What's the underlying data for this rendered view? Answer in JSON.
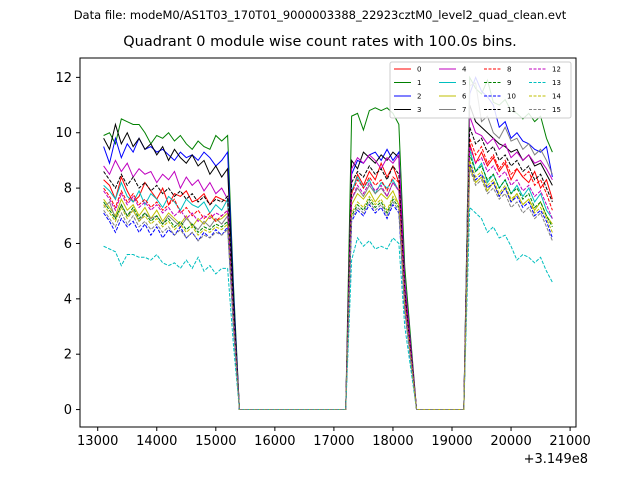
{
  "header": {
    "data_file_line": "Data file: modeM0/AS1T03_170T01_9000003388_22923cztM0_level2_quad_clean.evt"
  },
  "chart_data": {
    "type": "line",
    "title": "Quadrant 0 module wise count rates with 100.0s bins.",
    "xlabel": "",
    "ylabel": "",
    "x_offset_label": "+3.149e8",
    "xlim": [
      12700,
      21100
    ],
    "ylim": [
      -0.63,
      12.7
    ],
    "x_ticks": [
      13000,
      14000,
      15000,
      16000,
      17000,
      18000,
      19000,
      20000,
      21000
    ],
    "x_tick_labels": [
      "13000",
      "14000",
      "15000",
      "16000",
      "17000",
      "18000",
      "19000",
      "20000",
      "21000"
    ],
    "y_ticks": [
      0,
      2,
      4,
      6,
      8,
      10,
      12
    ],
    "y_tick_labels": [
      "0",
      "2",
      "4",
      "6",
      "8",
      "10",
      "12"
    ],
    "grid": false,
    "legend_position": "top-right",
    "legend_columns": 4,
    "series_x_segments": {
      "seg1": [
        13100,
        15200
      ],
      "drop1_end": 15400,
      "gap1_end": 17200,
      "seg2": [
        17300,
        18100
      ],
      "drop2_end": 18400,
      "gap2_end": 19200,
      "seg3": [
        19300,
        20700
      ],
      "bin_width": 100
    },
    "series": [
      {
        "name": "0",
        "color": "#ff0000",
        "dashed": false,
        "values_segments": [
          [
            8.3,
            8.1,
            7.6,
            8.4,
            7.9,
            7.5,
            7.7,
            8.2,
            7.9,
            7.6,
            8.0,
            7.4,
            7.8,
            7.7,
            7.9,
            7.5,
            7.6,
            7.8,
            7.4,
            7.7,
            7.6,
            7.5
          ],
          [
            7.8,
            8.5,
            8.1,
            8.6,
            8.3,
            8.9,
            8.4,
            8.8,
            8.2
          ],
          [
            9.6,
            8.9,
            9.3,
            8.8,
            9.1,
            8.6,
            8.9,
            8.3,
            8.7,
            8.4,
            8.2,
            8.6,
            8.0,
            8.3,
            7.6
          ]
        ]
      },
      {
        "name": "1",
        "color": "#008000",
        "dashed": false,
        "values_segments": [
          [
            9.9,
            10.0,
            9.6,
            10.5,
            10.4,
            10.3,
            10.3,
            10.0,
            9.6,
            9.9,
            9.8,
            10.0,
            9.7,
            9.9,
            9.6,
            9.4,
            9.7,
            9.5,
            9.4,
            9.9,
            9.7,
            9.9
          ],
          [
            10.6,
            10.7,
            10.1,
            10.8,
            10.9,
            10.8,
            10.9,
            10.7,
            10.3
          ],
          [
            12.0,
            11.6,
            11.4,
            11.9,
            11.1,
            11.0,
            11.2,
            10.8,
            10.7,
            10.5,
            10.7,
            10.4,
            10.6,
            9.8,
            9.3
          ]
        ]
      },
      {
        "name": "2",
        "color": "#0000ff",
        "dashed": false,
        "values_segments": [
          [
            9.5,
            8.9,
            9.8,
            9.1,
            9.6,
            9.3,
            9.8,
            9.4,
            9.5,
            9.3,
            9.4,
            9.2,
            9.0,
            9.3,
            9.1,
            9.2,
            9.0,
            9.3,
            9.1,
            8.8,
            9.0,
            9.3
          ],
          [
            8.5,
            9.0,
            8.9,
            9.2,
            9.3,
            9.0,
            9.4,
            9.0,
            9.3
          ],
          [
            11.4,
            12.0,
            11.5,
            11.3,
            11.0,
            10.2,
            10.4,
            9.8,
            10.0,
            9.7,
            9.6,
            9.4,
            9.3,
            9.5,
            8.4
          ]
        ]
      },
      {
        "name": "3",
        "color": "#000000",
        "dashed": false,
        "values_segments": [
          [
            9.8,
            9.4,
            10.3,
            9.6,
            10.0,
            9.5,
            9.8,
            9.4,
            9.6,
            9.2,
            9.5,
            9.0,
            9.4,
            9.1,
            8.9,
            9.2,
            8.8,
            9.0,
            8.5,
            8.8,
            8.4,
            8.7
          ],
          [
            9.0,
            8.7,
            9.3,
            9.1,
            8.9,
            9.2,
            9.0,
            9.3,
            9.1
          ],
          [
            11.0,
            10.4,
            10.2,
            10.0,
            9.8,
            9.6,
            9.5,
            9.3,
            9.4,
            9.0,
            9.2,
            8.8,
            8.9,
            8.5,
            8.1
          ]
        ]
      },
      {
        "name": "4",
        "color": "#bf00bf",
        "dashed": false,
        "values_segments": [
          [
            8.8,
            8.5,
            9.0,
            8.6,
            8.9,
            8.4,
            8.7,
            8.5,
            8.6,
            8.2,
            8.5,
            8.3,
            8.6,
            8.0,
            8.4,
            8.1,
            8.3,
            7.9,
            8.2,
            7.8,
            8.0,
            7.6
          ],
          [
            8.7,
            9.1,
            8.9,
            9.2,
            9.0,
            8.7,
            9.1,
            8.9,
            9.2
          ],
          [
            10.6,
            10.0,
            9.9,
            9.6,
            9.8,
            9.4,
            9.6,
            9.1,
            9.3,
            9.0,
            9.2,
            8.9,
            9.0,
            8.7,
            8.3
          ]
        ]
      },
      {
        "name": "5",
        "color": "#00bfbf",
        "dashed": false,
        "values_segments": [
          [
            8.1,
            7.9,
            7.6,
            8.2,
            7.7,
            7.5,
            7.9,
            7.4,
            7.8,
            7.6,
            7.3,
            7.7,
            7.5,
            7.2,
            7.6,
            7.4,
            7.3,
            7.5,
            7.1,
            7.4,
            7.2,
            7.6
          ],
          [
            7.9,
            8.4,
            8.0,
            8.3,
            7.8,
            8.2,
            8.0,
            8.3,
            7.9
          ],
          [
            9.4,
            8.6,
            8.9,
            8.2,
            8.5,
            8.0,
            8.3,
            7.8,
            8.1,
            7.7,
            8.0,
            7.5,
            7.8,
            7.2,
            6.9
          ]
        ]
      },
      {
        "name": "6",
        "color": "#bfbf00",
        "dashed": false,
        "values_segments": [
          [
            7.6,
            7.3,
            7.0,
            7.6,
            7.2,
            7.4,
            7.0,
            7.3,
            6.9,
            7.2,
            6.8,
            7.1,
            6.9,
            6.7,
            7.0,
            6.6,
            6.9,
            6.7,
            7.0,
            6.8,
            6.9,
            7.1
          ],
          [
            7.4,
            7.8,
            7.6,
            7.9,
            7.5,
            7.8,
            7.6,
            7.9,
            7.4
          ],
          [
            8.8,
            8.2,
            8.4,
            7.9,
            8.2,
            7.7,
            8.0,
            7.5,
            7.8,
            7.4,
            7.6,
            7.2,
            7.5,
            7.0,
            6.7
          ]
        ]
      },
      {
        "name": "7",
        "color": "#808080",
        "dashed": false,
        "values_segments": [
          [
            7.3,
            7.5,
            6.9,
            7.4,
            7.0,
            7.2,
            6.8,
            7.1,
            6.9,
            7.0,
            6.7,
            7.0,
            6.8,
            6.6,
            6.9,
            6.7,
            6.5,
            6.8,
            6.6,
            6.9,
            6.7,
            7.0
          ],
          [
            7.6,
            8.0,
            7.7,
            8.1,
            7.8,
            8.0,
            7.7,
            8.2,
            7.9
          ],
          [
            11.7,
            11.8,
            10.4,
            10.6,
            10.0,
            9.8,
            10.2,
            9.7,
            9.8,
            9.4,
            9.6,
            9.2,
            9.4,
            9.0,
            8.5
          ]
        ]
      },
      {
        "name": "8",
        "color": "#ff0000",
        "dashed": true,
        "values_segments": [
          [
            8.0,
            7.7,
            7.3,
            7.9,
            7.5,
            7.8,
            7.4,
            7.6,
            7.3,
            7.5,
            7.2,
            7.4,
            7.6,
            7.1,
            7.3,
            7.0,
            7.2,
            6.9,
            7.1,
            6.8,
            7.0,
            7.2
          ],
          [
            7.8,
            8.3,
            8.0,
            8.4,
            8.1,
            8.3,
            7.9,
            8.4,
            8.2
          ],
          [
            9.8,
            9.2,
            9.5,
            8.9,
            9.2,
            8.7,
            9.0,
            8.5,
            8.7,
            8.4,
            8.6,
            8.1,
            8.3,
            7.8,
            7.2
          ]
        ]
      },
      {
        "name": "9",
        "color": "#008000",
        "dashed": true,
        "values_segments": [
          [
            7.5,
            7.2,
            6.9,
            7.4,
            7.0,
            7.3,
            6.9,
            7.1,
            6.8,
            7.0,
            6.7,
            6.9,
            6.6,
            6.8,
            6.5,
            6.7,
            6.4,
            6.6,
            6.5,
            6.7,
            6.6,
            6.8
          ],
          [
            7.0,
            7.4,
            7.2,
            7.6,
            7.3,
            7.5,
            7.1,
            7.6,
            7.3
          ],
          [
            9.2,
            8.6,
            8.8,
            8.3,
            8.5,
            8.0,
            8.3,
            7.8,
            8.0,
            7.6,
            7.8,
            7.3,
            7.5,
            7.0,
            6.6
          ]
        ]
      },
      {
        "name": "10",
        "color": "#0000ff",
        "dashed": true,
        "values_segments": [
          [
            7.1,
            6.8,
            6.4,
            6.9,
            6.6,
            6.8,
            6.4,
            6.7,
            6.3,
            6.6,
            6.2,
            6.5,
            6.3,
            6.6,
            6.2,
            6.4,
            6.1,
            6.4,
            6.2,
            6.5,
            6.3,
            6.6
          ],
          [
            6.8,
            7.2,
            7.0,
            7.4,
            7.1,
            7.3,
            6.9,
            7.4,
            7.1
          ],
          [
            8.9,
            8.3,
            8.5,
            8.0,
            8.2,
            7.7,
            8.0,
            7.5,
            7.7,
            7.3,
            7.5,
            7.0,
            7.2,
            6.8,
            6.2
          ]
        ]
      },
      {
        "name": "11",
        "color": "#000000",
        "dashed": true,
        "values_segments": [
          [
            8.6,
            8.3,
            8.0,
            8.5,
            8.1,
            8.4,
            8.0,
            8.2,
            7.9,
            8.1,
            7.8,
            8.0,
            7.7,
            7.9,
            7.6,
            7.8,
            7.5,
            7.7,
            7.4,
            7.6,
            7.5,
            7.7
          ],
          [
            8.2,
            8.6,
            8.4,
            8.8,
            8.5,
            8.7,
            8.3,
            8.8,
            8.5
          ],
          [
            10.2,
            9.6,
            9.8,
            9.3,
            9.5,
            9.0,
            9.2,
            8.8,
            9.0,
            8.6,
            8.8,
            8.3,
            8.5,
            8.0,
            7.5
          ]
        ]
      },
      {
        "name": "12",
        "color": "#bf00bf",
        "dashed": true,
        "values_segments": [
          [
            7.9,
            7.6,
            7.2,
            7.8,
            7.4,
            7.7,
            7.3,
            7.5,
            7.2,
            7.4,
            7.1,
            7.3,
            7.0,
            7.2,
            6.9,
            7.1,
            6.8,
            7.0,
            6.9,
            7.1,
            7.0,
            7.2
          ],
          [
            7.6,
            8.1,
            7.8,
            8.2,
            7.9,
            8.1,
            7.7,
            8.2,
            7.9
          ],
          [
            9.5,
            8.9,
            9.1,
            8.6,
            8.8,
            8.4,
            8.6,
            8.1,
            8.3,
            7.9,
            8.1,
            7.7,
            7.9,
            7.4,
            6.9
          ]
        ]
      },
      {
        "name": "13",
        "color": "#00bfbf",
        "dashed": true,
        "values_segments": [
          [
            5.9,
            5.8,
            5.7,
            5.2,
            5.6,
            5.6,
            5.5,
            5.5,
            5.4,
            5.6,
            5.3,
            5.2,
            5.3,
            5.1,
            5.4,
            5.1,
            5.5,
            5.0,
            5.2,
            4.9,
            5.1,
            5.1
          ],
          [
            5.4,
            6.2,
            5.9,
            6.1,
            5.8,
            5.9,
            5.8,
            6.2,
            6.0
          ],
          [
            7.3,
            7.1,
            6.9,
            6.4,
            6.6,
            6.2,
            6.3,
            5.9,
            5.4,
            5.6,
            5.5,
            5.3,
            5.5,
            5.0,
            4.6
          ]
        ]
      },
      {
        "name": "14",
        "color": "#bfbf00",
        "dashed": true,
        "values_segments": [
          [
            7.4,
            7.1,
            6.8,
            7.3,
            6.9,
            7.2,
            6.8,
            7.0,
            6.7,
            6.9,
            6.6,
            6.8,
            6.5,
            6.7,
            6.4,
            6.6,
            6.3,
            6.5,
            6.4,
            6.6,
            6.5,
            6.7
          ],
          [
            7.1,
            7.5,
            7.3,
            7.7,
            7.4,
            7.6,
            7.2,
            7.7,
            7.4
          ],
          [
            9.0,
            8.4,
            8.6,
            8.1,
            8.3,
            7.8,
            8.1,
            7.6,
            7.8,
            7.4,
            7.6,
            7.1,
            7.3,
            6.9,
            6.4
          ]
        ]
      },
      {
        "name": "15",
        "color": "#808080",
        "dashed": true,
        "values_segments": [
          [
            7.2,
            6.9,
            6.6,
            7.1,
            6.7,
            7.0,
            6.6,
            6.8,
            6.5,
            6.7,
            6.4,
            6.6,
            6.3,
            6.5,
            6.2,
            6.4,
            6.1,
            6.3,
            6.2,
            6.4,
            6.3,
            6.5
          ],
          [
            6.9,
            7.3,
            7.1,
            7.5,
            7.2,
            7.4,
            7.0,
            7.5,
            7.2
          ],
          [
            8.7,
            8.1,
            8.3,
            7.8,
            8.0,
            7.6,
            7.8,
            7.3,
            7.5,
            7.1,
            7.3,
            6.9,
            7.1,
            6.6,
            6.1
          ]
        ]
      }
    ]
  }
}
